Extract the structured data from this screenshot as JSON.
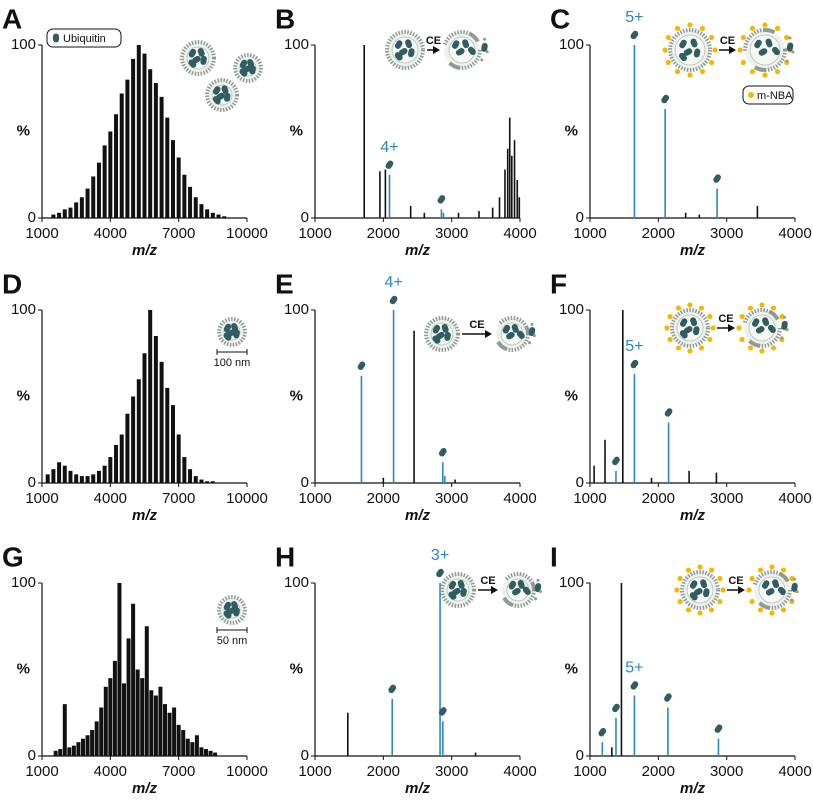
{
  "chart_data": [
    {
      "type": "spectrum",
      "panel": "A",
      "xlabel": "m/z",
      "ylabel": "%",
      "xlim": [
        1000,
        10000
      ],
      "xticks": [
        1000,
        4000,
        7000,
        10000
      ],
      "ylim": [
        0,
        100
      ],
      "yticks": [
        0,
        100
      ],
      "inset_labels": [
        "Ubiquitin"
      ],
      "series": [
        {
          "color": "#111111",
          "x": [
            1500,
            1750,
            2000,
            2250,
            2500,
            2750,
            3000,
            3250,
            3500,
            3750,
            4000,
            4250,
            4500,
            4750,
            5000,
            5250,
            5500,
            5750,
            6000,
            6250,
            6500,
            6750,
            7000,
            7250,
            7500,
            7750,
            8000,
            8250,
            8500,
            8750,
            9000
          ],
          "values": [
            2,
            3,
            5,
            6,
            9,
            12,
            17,
            24,
            32,
            42,
            50,
            60,
            72,
            80,
            92,
            100,
            95,
            86,
            78,
            70,
            58,
            45,
            35,
            25,
            18,
            12,
            8,
            5,
            3,
            2,
            1
          ]
        }
      ]
    },
    {
      "type": "spectrum",
      "panel": "B",
      "xlabel": "m/z",
      "ylabel": "%",
      "xlim": [
        1000,
        4000
      ],
      "xticks": [
        1000,
        2000,
        3000,
        4000
      ],
      "ylim": [
        0,
        100
      ],
      "yticks": [
        0,
        100
      ],
      "charge": "4+",
      "inset_labels": [
        "CE"
      ],
      "series": [
        {
          "color": "#111111",
          "x": [
            1720,
            1950,
            2030,
            2400,
            2600,
            3100,
            3400,
            3600,
            3700,
            3780,
            3820,
            3850,
            3880,
            3920,
            3960,
            3990
          ],
          "values": [
            100,
            27,
            28,
            7,
            3,
            3,
            4,
            6,
            12,
            28,
            40,
            58,
            36,
            45,
            22,
            12
          ]
        },
        {
          "color": "#2b88c2",
          "x": [
            2090,
            2850,
            2880
          ],
          "values": [
            25,
            5,
            3
          ]
        }
      ]
    },
    {
      "type": "spectrum",
      "panel": "C",
      "xlabel": "m/z",
      "ylabel": "%",
      "xlim": [
        1000,
        4000
      ],
      "xticks": [
        1000,
        2000,
        3000,
        4000
      ],
      "ylim": [
        0,
        100
      ],
      "yticks": [
        0,
        100
      ],
      "charge": "5+",
      "inset_labels": [
        "CE",
        "m-NBA"
      ],
      "series": [
        {
          "color": "#111111",
          "x": [
            2400,
            2600,
            3450
          ],
          "values": [
            3,
            2,
            7
          ]
        },
        {
          "color": "#2b88c2",
          "x": [
            1650,
            2100,
            2860
          ],
          "values": [
            100,
            63,
            17
          ]
        }
      ]
    },
    {
      "type": "spectrum",
      "panel": "D",
      "xlabel": "m/z",
      "ylabel": "%",
      "xlim": [
        1000,
        10000
      ],
      "xticks": [
        1000,
        4000,
        7000,
        10000
      ],
      "ylim": [
        0,
        100
      ],
      "yticks": [
        0,
        100
      ],
      "inset_labels": [
        "100 nm"
      ],
      "series": [
        {
          "color": "#111111",
          "x": [
            1250,
            1500,
            1750,
            2000,
            2250,
            2500,
            2750,
            3000,
            3250,
            3500,
            3750,
            4000,
            4250,
            4500,
            4750,
            5000,
            5250,
            5500,
            5750,
            6000,
            6250,
            6500,
            6750,
            7000,
            7250,
            7500,
            7750,
            8000,
            8250,
            8500
          ],
          "values": [
            5,
            8,
            12,
            10,
            7,
            5,
            4,
            4,
            5,
            7,
            10,
            15,
            22,
            28,
            40,
            50,
            60,
            75,
            100,
            85,
            70,
            55,
            45,
            28,
            15,
            8,
            4,
            2,
            1,
            1
          ]
        }
      ]
    },
    {
      "type": "spectrum",
      "panel": "E",
      "xlabel": "m/z",
      "ylabel": "%",
      "xlim": [
        1000,
        4000
      ],
      "xticks": [
        1000,
        2000,
        3000,
        4000
      ],
      "ylim": [
        0,
        100
      ],
      "yticks": [
        0,
        100
      ],
      "charge": "4+",
      "inset_labels": [
        "CE"
      ],
      "series": [
        {
          "color": "#111111",
          "x": [
            2000,
            2450,
            3050
          ],
          "values": [
            3,
            88,
            2
          ]
        },
        {
          "color": "#2b88c2",
          "x": [
            1680,
            2150,
            2870,
            2900
          ],
          "values": [
            62,
            100,
            12,
            4
          ]
        }
      ]
    },
    {
      "type": "spectrum",
      "panel": "F",
      "xlabel": "m/z",
      "ylabel": "%",
      "xlim": [
        1000,
        4000
      ],
      "xticks": [
        1000,
        2000,
        3000,
        4000
      ],
      "ylim": [
        0,
        100
      ],
      "yticks": [
        0,
        100
      ],
      "charge": "5+",
      "inset_labels": [
        "CE"
      ],
      "series": [
        {
          "color": "#111111",
          "x": [
            1060,
            1220,
            1480,
            1900,
            2450,
            2850
          ],
          "values": [
            10,
            25,
            100,
            3,
            7,
            6
          ]
        },
        {
          "color": "#2b88c2",
          "x": [
            1380,
            1650,
            2150
          ],
          "values": [
            7,
            63,
            35
          ]
        }
      ]
    },
    {
      "type": "spectrum",
      "panel": "G",
      "xlabel": "m/z",
      "ylabel": "%",
      "xlim": [
        1000,
        10000
      ],
      "xticks": [
        1000,
        4000,
        7000,
        10000
      ],
      "ylim": [
        0,
        100
      ],
      "yticks": [
        0,
        100
      ],
      "inset_labels": [
        "50 nm"
      ],
      "series": [
        {
          "color": "#111111",
          "x": [
            1600,
            1800,
            2000,
            2200,
            2400,
            2600,
            2800,
            3000,
            3200,
            3400,
            3600,
            3800,
            4000,
            4200,
            4400,
            4600,
            4800,
            5000,
            5200,
            5400,
            5600,
            5800,
            6000,
            6200,
            6400,
            6600,
            6800,
            7000,
            7200,
            7400,
            7600,
            7800,
            8000,
            8200,
            8400,
            8600
          ],
          "values": [
            3,
            4,
            30,
            5,
            6,
            8,
            10,
            12,
            15,
            20,
            28,
            40,
            45,
            55,
            100,
            42,
            68,
            88,
            50,
            45,
            75,
            38,
            35,
            40,
            30,
            25,
            28,
            18,
            15,
            10,
            8,
            12,
            5,
            4,
            3,
            2
          ]
        }
      ]
    },
    {
      "type": "spectrum",
      "panel": "H",
      "xlabel": "m/z",
      "ylabel": "%",
      "xlim": [
        1000,
        4000
      ],
      "xticks": [
        1000,
        2000,
        3000,
        4000
      ],
      "ylim": [
        0,
        100
      ],
      "yticks": [
        0,
        100
      ],
      "charge": "3+",
      "inset_labels": [
        "CE"
      ],
      "series": [
        {
          "color": "#111111",
          "x": [
            1480,
            3350
          ],
          "values": [
            25,
            2
          ]
        },
        {
          "color": "#2b88c2",
          "x": [
            2130,
            2830,
            2870
          ],
          "values": [
            33,
            100,
            20
          ]
        }
      ]
    },
    {
      "type": "spectrum",
      "panel": "I",
      "xlabel": "m/z",
      "ylabel": "%",
      "xlim": [
        1000,
        4000
      ],
      "xticks": [
        1000,
        2000,
        3000,
        4000
      ],
      "ylim": [
        0,
        100
      ],
      "yticks": [
        0,
        100
      ],
      "charge": "5+",
      "inset_labels": [
        "CE"
      ],
      "series": [
        {
          "color": "#111111",
          "x": [
            1320,
            1460
          ],
          "values": [
            5,
            100
          ]
        },
        {
          "color": "#2b88c2",
          "x": [
            1180,
            1380,
            1650,
            2140,
            2880
          ],
          "values": [
            8,
            22,
            35,
            28,
            10
          ]
        }
      ]
    }
  ]
}
